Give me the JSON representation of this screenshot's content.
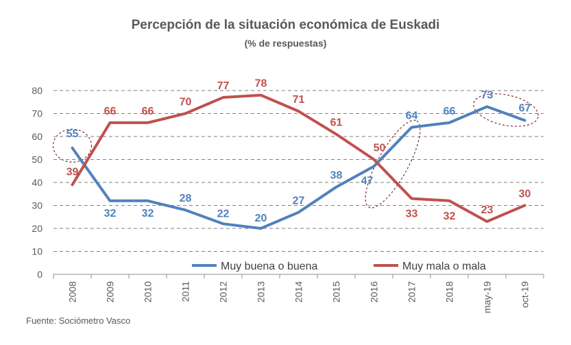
{
  "chart_data": {
    "type": "line",
    "title": "Percepción de la situación económica de Euskadi",
    "subtitle": "(% de respuestas)",
    "categories": [
      "2008",
      "2009",
      "2010",
      "2011",
      "2012",
      "2013",
      "2014",
      "2015",
      "2016",
      "2017",
      "2018",
      "may-19",
      "oct-19"
    ],
    "series": [
      {
        "name": "Muy buena o buena",
        "color": "#4f81bd",
        "values": [
          55,
          32,
          32,
          28,
          22,
          20,
          27,
          38,
          47,
          64,
          66,
          73,
          67
        ]
      },
      {
        "name": "Muy mala o mala",
        "color": "#c0504d",
        "values": [
          39,
          66,
          66,
          70,
          77,
          78,
          71,
          61,
          50,
          33,
          32,
          23,
          30
        ]
      }
    ],
    "ylim": [
      0,
      80
    ],
    "yticks": [
      0,
      10,
      20,
      30,
      40,
      50,
      60,
      70,
      80
    ],
    "grid": true,
    "legend": "bottom-right",
    "source": "Fuente: Sociómetro Vasco",
    "annotations": [
      "circle 2008 Muy buena o buena",
      "ellipse 2016-2017",
      "ellipse may-19 / oct-19"
    ]
  }
}
